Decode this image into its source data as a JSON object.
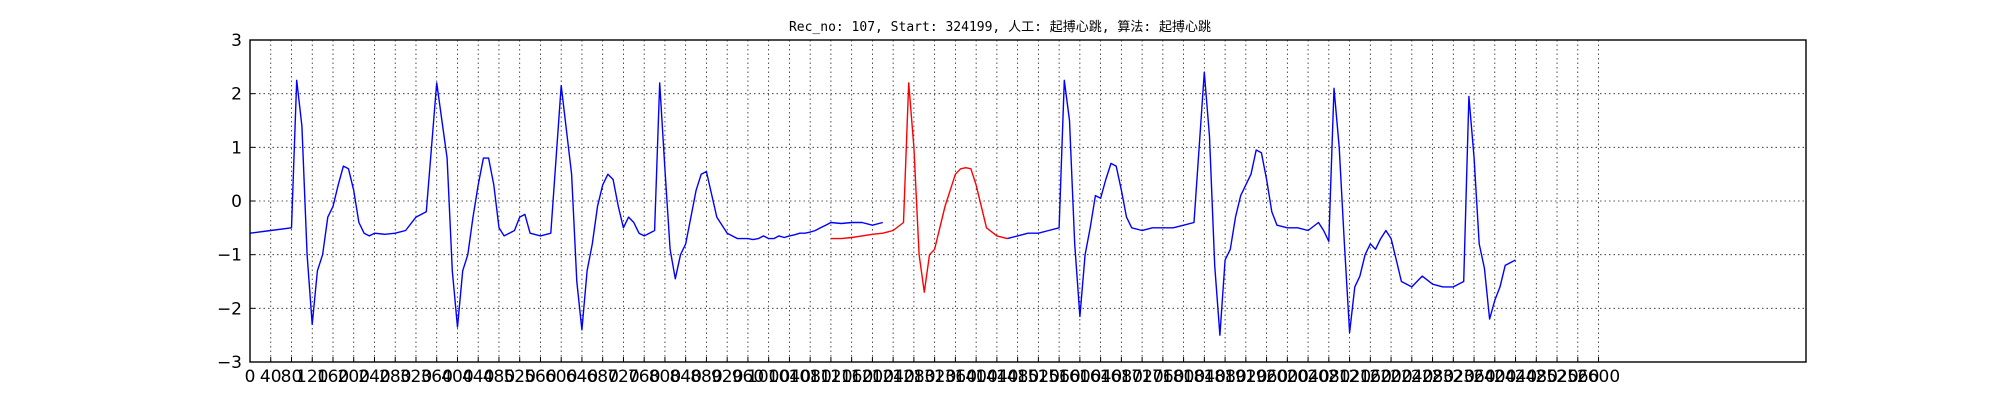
{
  "chart_data": {
    "type": "line",
    "title": "Rec_no: 107, Start: 324199, 人工: 起搏心跳, 算法: 起搏心跳",
    "xlabel": "",
    "ylabel": "",
    "xlim": [
      0,
      3000
    ],
    "ylim": [
      -3,
      3
    ],
    "grid": true,
    "x_ticks": [
      0,
      40,
      80,
      120,
      160,
      200,
      240,
      280,
      320,
      360,
      400,
      440,
      480,
      520,
      560,
      600,
      640,
      680,
      720,
      760,
      800,
      840,
      880,
      920,
      960,
      1000,
      1040,
      1080,
      1120,
      1160,
      1200,
      1240,
      1280,
      1320,
      1360,
      1400,
      1440,
      1480,
      1520,
      1560,
      1600,
      1640,
      1680,
      1720,
      1760,
      1800,
      1840,
      1880,
      1920,
      1960,
      2000,
      2040,
      2080,
      2120,
      2160,
      2200,
      2240,
      2280,
      2320,
      2360,
      2400,
      2440,
      2480,
      2520,
      2560,
      2600
    ],
    "y_ticks": [
      -3,
      -2,
      -1,
      0,
      1,
      2,
      3
    ],
    "series": [
      {
        "color": "#0000ff",
        "x": [
          0,
          40,
          80,
          90,
          100,
          110,
          120,
          130,
          140,
          150,
          160,
          170,
          180,
          190,
          200,
          210,
          220,
          230,
          240,
          260,
          280,
          300,
          320,
          340,
          360,
          380,
          390,
          400,
          410,
          420,
          430,
          440,
          450,
          460,
          470,
          480,
          490,
          500,
          510,
          520,
          530,
          540,
          560,
          580,
          600,
          620,
          630,
          640,
          650,
          660,
          670,
          680,
          690,
          700,
          710,
          720,
          730,
          740,
          750,
          760,
          770,
          780,
          790,
          800,
          810,
          820,
          830,
          840,
          850,
          860,
          870,
          880,
          900,
          920,
          940,
          960,
          970,
          980,
          990,
          1000,
          1010,
          1020,
          1030,
          1040,
          1050,
          1060,
          1070,
          1080,
          1090,
          1100,
          1110,
          1120,
          1140,
          1160,
          1180,
          1200,
          1220
        ],
        "y": [
          -0.6,
          -0.55,
          -0.5,
          2.25,
          1.4,
          -1.0,
          -2.3,
          -1.3,
          -1.0,
          -0.3,
          -0.1,
          0.3,
          0.65,
          0.6,
          0.2,
          -0.4,
          -0.6,
          -0.65,
          -0.6,
          -0.62,
          -0.6,
          -0.55,
          -0.3,
          -0.2,
          2.2,
          0.8,
          -1.3,
          -2.35,
          -1.3,
          -1.0,
          -0.3,
          0.3,
          0.8,
          0.8,
          0.3,
          -0.5,
          -0.65,
          -0.6,
          -0.55,
          -0.3,
          -0.25,
          -0.6,
          -0.65,
          -0.6,
          2.15,
          0.5,
          -1.5,
          -2.4,
          -1.3,
          -0.8,
          -0.1,
          0.3,
          0.5,
          0.4,
          -0.1,
          -0.5,
          -0.3,
          -0.4,
          -0.6,
          -0.65,
          -0.6,
          -0.55,
          2.2,
          0.6,
          -0.9,
          -1.45,
          -1.0,
          -0.8,
          -0.3,
          0.2,
          0.5,
          0.55,
          -0.3,
          -0.6,
          -0.7,
          -0.7,
          -0.72,
          -0.7,
          -0.65,
          -0.7,
          -0.7,
          -0.65,
          -0.68,
          -0.65,
          -0.63,
          -0.6,
          -0.6,
          -0.58,
          -0.55,
          -0.5,
          -0.45,
          -0.4,
          -0.42,
          -0.4,
          -0.4,
          -0.45,
          -0.4
        ]
      },
      {
        "color": "#ff0000",
        "x": [
          1120,
          1140,
          1160,
          1180,
          1200,
          1220,
          1240,
          1260,
          1270,
          1280,
          1290,
          1300,
          1310,
          1320,
          1330,
          1340,
          1350,
          1360,
          1370,
          1380,
          1390,
          1400,
          1410,
          1420,
          1440,
          1460
        ],
        "y": [
          -0.7,
          -0.7,
          -0.68,
          -0.65,
          -0.62,
          -0.6,
          -0.55,
          -0.4,
          2.2,
          1.0,
          -1.0,
          -1.7,
          -1.0,
          -0.9,
          -0.5,
          -0.1,
          0.2,
          0.5,
          0.6,
          0.62,
          0.6,
          0.3,
          -0.1,
          -0.5,
          -0.65,
          -0.7
        ]
      },
      {
        "color": "#0000ff",
        "x": [
          1460,
          1480,
          1500,
          1520,
          1540,
          1560,
          1570,
          1580,
          1590,
          1600,
          1610,
          1620,
          1630,
          1640,
          1650,
          1660,
          1670,
          1680,
          1690,
          1700,
          1720,
          1740,
          1760,
          1780,
          1800,
          1820,
          1840,
          1850,
          1860,
          1870,
          1880,
          1890,
          1900,
          1910,
          1920,
          1930,
          1940,
          1950,
          1960,
          1970,
          1980,
          2000,
          2020,
          2040,
          2060,
          2070,
          2080,
          2090,
          2100,
          2110,
          2120,
          2130,
          2140,
          2150,
          2160,
          2170,
          2180,
          2190,
          2200,
          2210,
          2220,
          2240,
          2260,
          2280,
          2300,
          2320,
          2340,
          2350,
          2360,
          2370,
          2380,
          2390,
          2400,
          2410,
          2420,
          2440
        ],
        "y": [
          -0.7,
          -0.65,
          -0.6,
          -0.6,
          -0.55,
          -0.5,
          2.25,
          1.5,
          -0.8,
          -2.15,
          -1.0,
          -0.5,
          0.1,
          0.05,
          0.4,
          0.7,
          0.65,
          0.2,
          -0.3,
          -0.5,
          -0.55,
          -0.5,
          -0.5,
          -0.5,
          -0.45,
          -0.4,
          2.4,
          1.2,
          -1.2,
          -2.5,
          -1.1,
          -0.9,
          -0.3,
          0.1,
          0.3,
          0.5,
          0.95,
          0.9,
          0.4,
          -0.2,
          -0.45,
          -0.5,
          -0.5,
          -0.55,
          -0.4,
          -0.55,
          -0.75,
          2.1,
          1.0,
          -0.8,
          -2.45,
          -1.6,
          -1.4,
          -1.0,
          -0.8,
          -0.9,
          -0.7,
          -0.55,
          -0.7,
          -1.1,
          -1.5,
          -1.6,
          -1.4,
          -1.55,
          -1.6,
          -1.6,
          -1.5,
          1.95,
          0.8,
          -0.8,
          -1.25,
          -2.2,
          -1.85,
          -1.6,
          -1.2,
          -1.1
        ]
      }
    ]
  }
}
